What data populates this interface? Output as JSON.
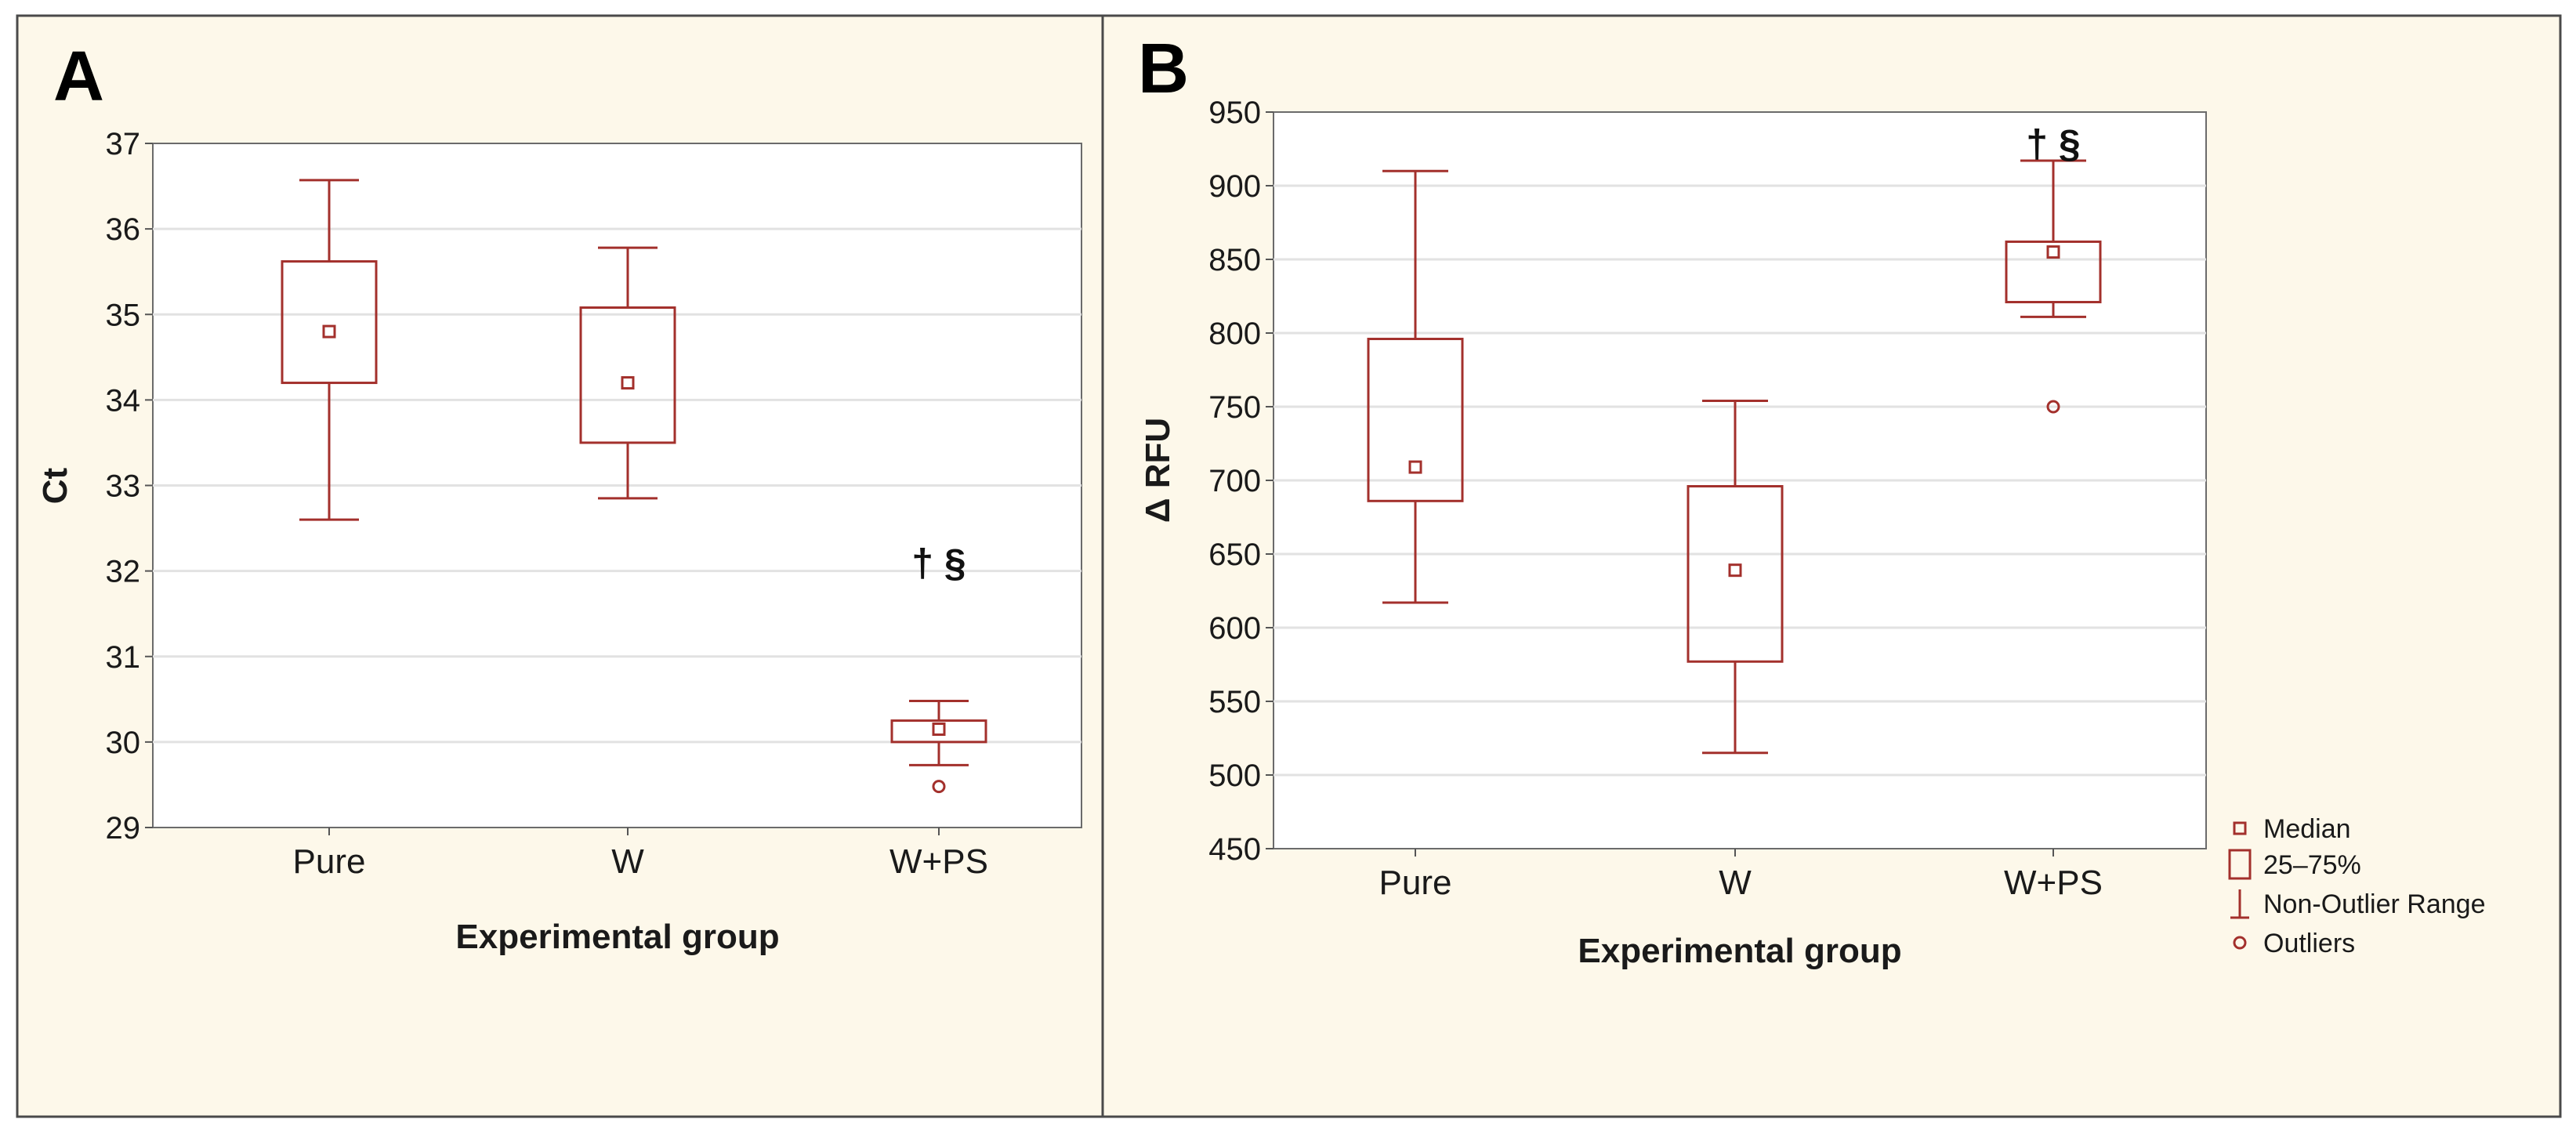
{
  "colors": {
    "mark": "#a3302c",
    "panel_bg": "#fdf8ea",
    "plot_bg": "#ffffff",
    "grid": "#e2e2e2"
  },
  "chart_data": [
    {
      "type": "box",
      "panel": "A",
      "xlabel": "Experimental group",
      "ylabel": "Ct",
      "ylim": [
        29,
        37
      ],
      "yticks": [
        29,
        30,
        31,
        32,
        33,
        34,
        35,
        36,
        37
      ],
      "grid": true,
      "categories": [
        "Pure",
        "W",
        "W+PS"
      ],
      "boxes": [
        {
          "median": 34.8,
          "q1": 34.2,
          "q3": 35.62,
          "whisker_low": 32.6,
          "whisker_high": 36.57,
          "outliers": []
        },
        {
          "median": 34.2,
          "q1": 33.5,
          "q3": 35.08,
          "whisker_low": 32.85,
          "whisker_high": 35.78,
          "outliers": []
        },
        {
          "median": 30.15,
          "q1": 30.0,
          "q3": 30.25,
          "whisker_low": 29.73,
          "whisker_high": 30.48,
          "outliers": [
            29.48
          ]
        }
      ],
      "annotations": [
        {
          "category": "W+PS",
          "text": "† §",
          "y": 32.1
        }
      ]
    },
    {
      "type": "box",
      "panel": "B",
      "xlabel": "Experimental group",
      "ylabel": "Δ RFU",
      "ylim": [
        450,
        950
      ],
      "yticks": [
        450,
        500,
        550,
        600,
        650,
        700,
        750,
        800,
        850,
        900,
        950
      ],
      "grid": true,
      "categories": [
        "Pure",
        "W",
        "W+PS"
      ],
      "boxes": [
        {
          "median": 709,
          "q1": 686,
          "q3": 796,
          "whisker_low": 617,
          "whisker_high": 910,
          "outliers": []
        },
        {
          "median": 639,
          "q1": 577,
          "q3": 696,
          "whisker_low": 515,
          "whisker_high": 754,
          "outliers": []
        },
        {
          "median": 855,
          "q1": 821,
          "q3": 862,
          "whisker_low": 811,
          "whisker_high": 917,
          "outliers": [
            750
          ]
        }
      ],
      "annotations": [
        {
          "category": "W+PS",
          "text": "† §",
          "y": 929
        }
      ],
      "legend": {
        "position": "right",
        "items": [
          {
            "symbol": "median",
            "label": "Median"
          },
          {
            "symbol": "box",
            "label": "25–75%"
          },
          {
            "symbol": "whisker",
            "label": "Non-Outlier Range"
          },
          {
            "symbol": "outlier",
            "label": "Outliers"
          }
        ]
      }
    }
  ]
}
